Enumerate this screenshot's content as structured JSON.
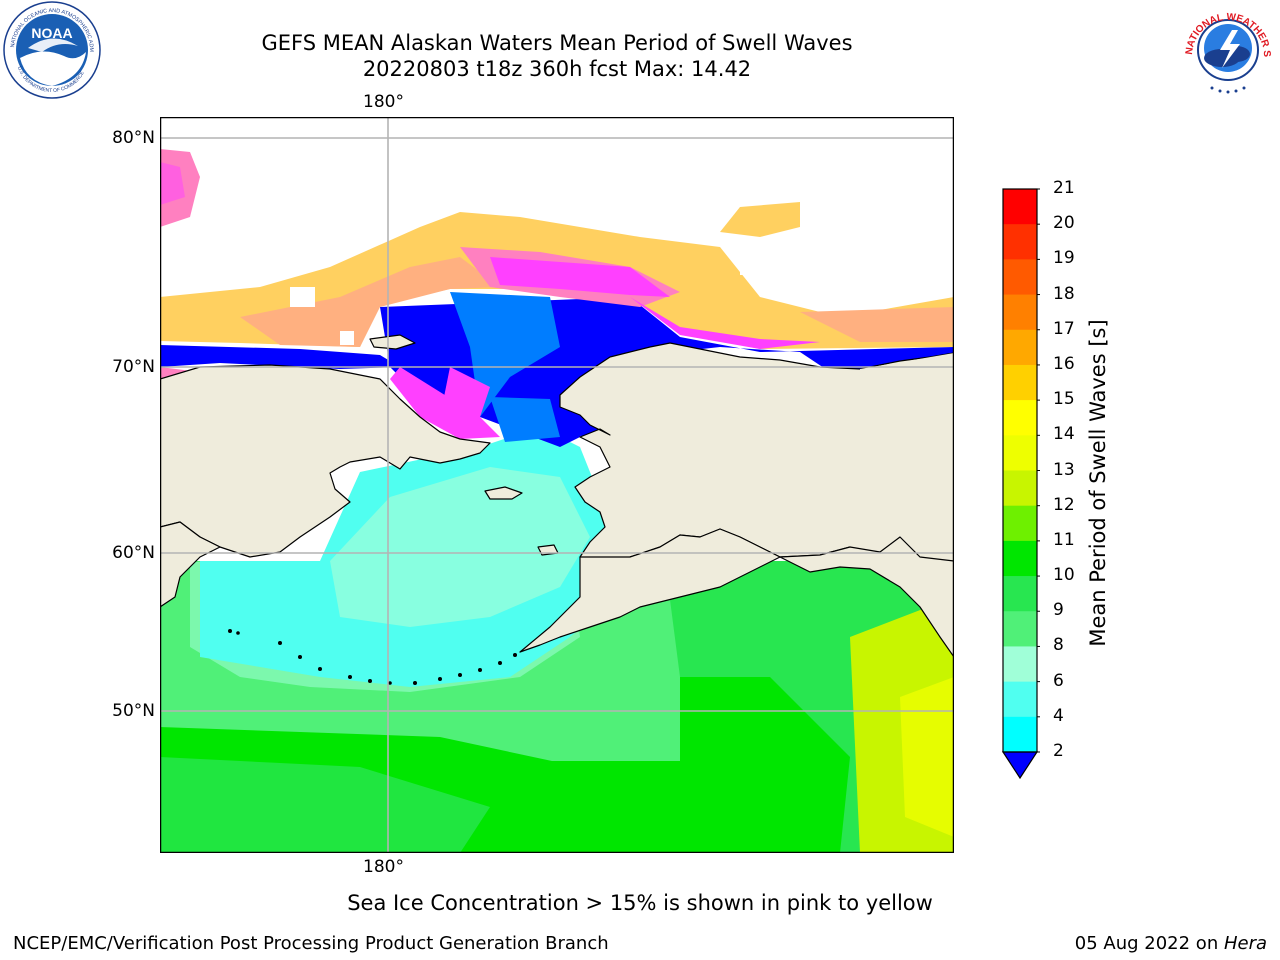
{
  "title": {
    "line1": "GEFS MEAN Alaskan Waters Mean Period of Swell Waves",
    "line2": "20220803 t18z 360h fcst   Max: 14.42"
  },
  "map": {
    "lon_label_top": "180°",
    "lon_label_bottom": "180°",
    "lat_labels": [
      "80°N",
      "70°N",
      "60°N",
      "50°N"
    ],
    "colors": {
      "land": "#efecdc",
      "coast": "#000000",
      "grid": "#b4b4b4",
      "ice": "#ffa0a0",
      "missing": "#ffffff"
    },
    "sea_ice_colors": [
      "#ff40ff",
      "#ff80c0",
      "#ffb080",
      "#ffd060",
      "#ffe060"
    ]
  },
  "colorbar": {
    "label": "Mean Period of Swell Waves [s]",
    "ticks": [
      "21",
      "20",
      "19",
      "18",
      "17",
      "16",
      "15",
      "14",
      "13",
      "12",
      "11",
      "10",
      "9",
      "8",
      "6",
      "4",
      "2"
    ],
    "colors": [
      "#ff0000",
      "#ff3000",
      "#ff5a00",
      "#ff8000",
      "#ffa800",
      "#ffd000",
      "#ffff00",
      "#eeff00",
      "#c8f500",
      "#6ef000",
      "#00e600",
      "#28e650",
      "#50f078",
      "#a0ffd8",
      "#50fff0",
      "#00ffff",
      "#007dff",
      "#0000ff"
    ],
    "extend_color": "#0000ff"
  },
  "caption": "Sea Ice Concentration > 15% is shown in pink to yellow",
  "footer": {
    "left": "NCEP/EMC/Verification Post Processing Product Generation Branch",
    "right_prefix": "05 Aug 2022 on ",
    "right_host": "Hera"
  },
  "logos": {
    "noaa": "NOAA",
    "noaa_ring": "NATIONAL OCEANIC AND ATMOSPHERIC ADMINISTRATION",
    "noaa_ring_bottom": "U.S. DEPARTMENT OF COMMERCE",
    "nws_ring": "NATIONAL WEATHER SERVICE"
  }
}
